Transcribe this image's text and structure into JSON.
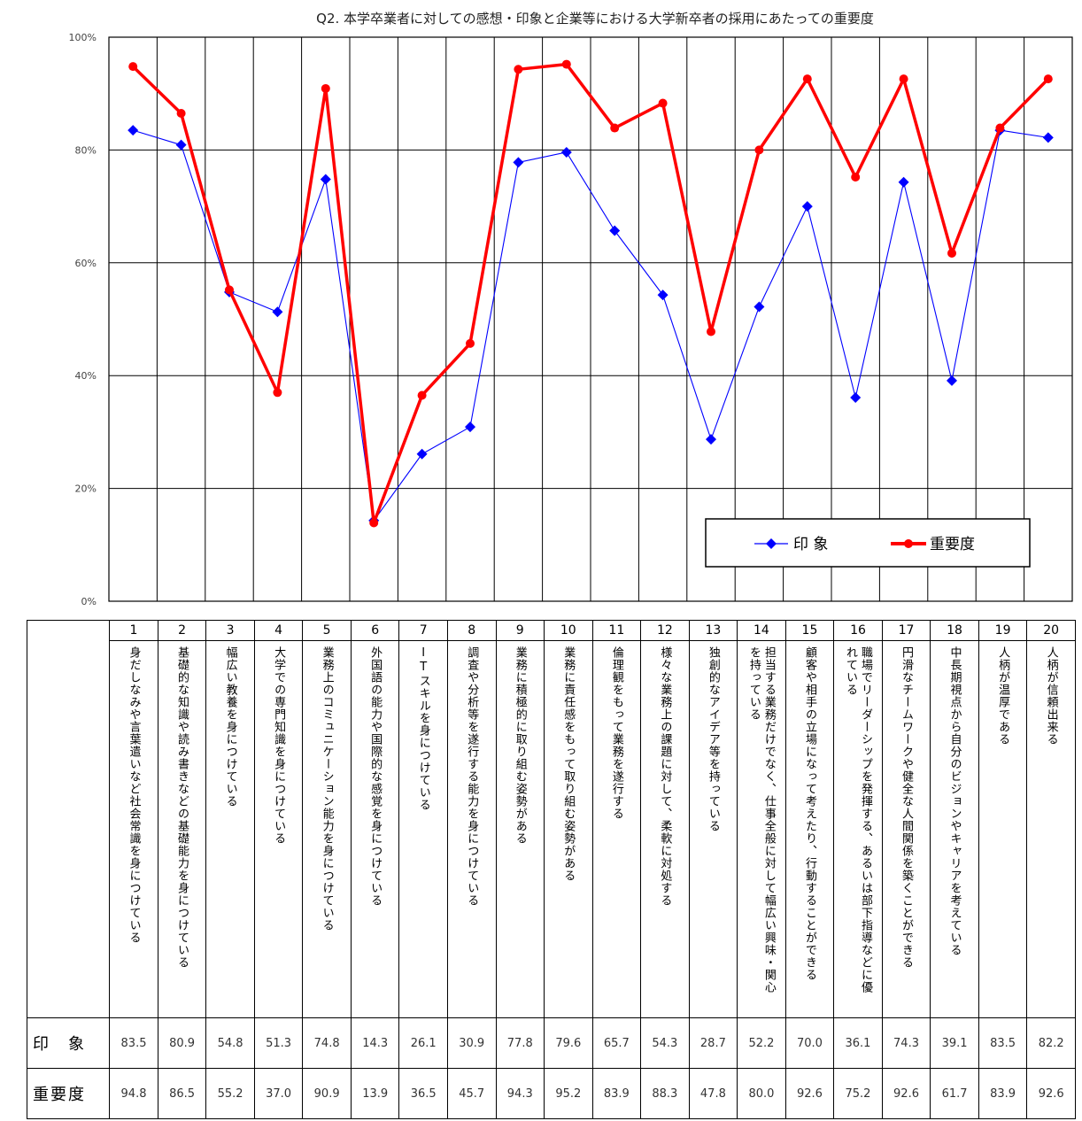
{
  "chart_data": {
    "type": "line",
    "title": "Q2. 本学卒業者に対しての感想・印象と企業等における大学新卒者の採用にあたっての重要度",
    "ylim": [
      0,
      100
    ],
    "yticks": [
      "0%",
      "20%",
      "40%",
      "60%",
      "80%",
      "100%"
    ],
    "grid": true,
    "legend_position": "bottom-right",
    "categories": [
      "1",
      "2",
      "3",
      "4",
      "5",
      "6",
      "7",
      "8",
      "9",
      "10",
      "11",
      "12",
      "13",
      "14",
      "15",
      "16",
      "17",
      "18",
      "19",
      "20"
    ],
    "descriptions": [
      "身だしなみや言葉遣いなど社会常識を身につけている",
      "基礎的な知識や読み書きなどの基礎能力を身につけている",
      "幅広い教養を身につけている",
      "大学での専門知識を身につけている",
      "業務上のコミュニケーション能力を身につけている",
      "外国語の能力や国際的な感覚を身につけている",
      "ITスキルを身につけている",
      "調査や分析等を遂行する能力を身につけている",
      "業務に積極的に取り組む姿勢がある",
      "業務に責任感をもって取り組む姿勢がある",
      "倫理観をもって業務を遂行する",
      "様々な業務上の課題に対して、柔軟に対処する",
      "独創的なアイデア等を持っている",
      "担当する業務だけでなく、仕事全般に対して幅広い興味・関心を持っている",
      "顧客や相手の立場になって考えたり、行動することができる",
      "職場でリーダーシップを発揮する、あるいは部下指導などに優れている",
      "円滑なチームワークや健全な人間関係を築くことができる",
      "中長期視点から自分のビジョンやキャリアを考えている",
      "人柄が温厚である",
      "人柄が信頼出来る"
    ],
    "series": [
      {
        "name": "印 象",
        "color": "#0000ff",
        "marker": "diamond",
        "values": [
          83.5,
          80.9,
          54.8,
          51.3,
          74.8,
          14.3,
          26.1,
          30.9,
          77.8,
          79.6,
          65.7,
          54.3,
          28.7,
          52.2,
          70.0,
          36.1,
          74.3,
          39.1,
          83.5,
          82.2
        ],
        "display": [
          "83.5",
          "80.9",
          "54.8",
          "51.3",
          "74.8",
          "14.3",
          "26.1",
          "30.9",
          "77.8",
          "79.6",
          "65.7",
          "54.3",
          "28.7",
          "52.2",
          "70.0",
          "36.1",
          "74.3",
          "39.1",
          "83.5",
          "82.2"
        ]
      },
      {
        "name": "重要度",
        "color": "#ff0000",
        "marker": "circle",
        "values": [
          94.8,
          86.5,
          55.2,
          37.0,
          90.9,
          13.9,
          36.5,
          45.7,
          94.3,
          95.2,
          83.9,
          88.3,
          47.8,
          80.0,
          92.6,
          75.2,
          92.6,
          61.7,
          83.9,
          92.6
        ],
        "display": [
          "94.8",
          "86.5",
          "55.2",
          "37.0",
          "90.9",
          "13.9",
          "36.5",
          "45.7",
          "94.3",
          "95.2",
          "83.9",
          "88.3",
          "47.8",
          "80.0",
          "92.6",
          "75.2",
          "92.6",
          "61.7",
          "83.9",
          "92.6"
        ]
      }
    ]
  },
  "table": {
    "row_labels": [
      "印　象",
      "重要度"
    ]
  }
}
